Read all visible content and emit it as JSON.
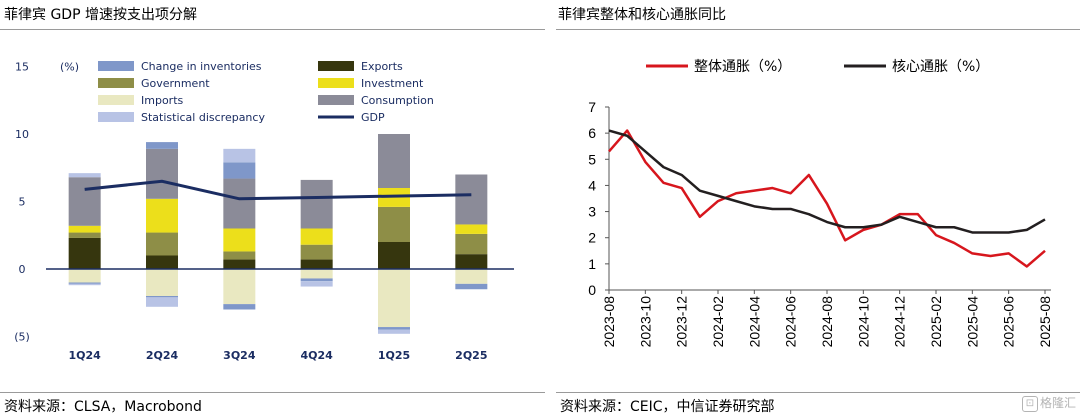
{
  "left": {
    "title": "菲律宾 GDP 增速按支出项分解",
    "source": "资料来源：CLSA，Macrobond",
    "unit_label": "(%)"
  },
  "right": {
    "title": "菲律宾整体和核心通胀同比",
    "source": "资料来源：CEIC，中信证券研究部"
  },
  "watermark": {
    "text": "格隆汇",
    "icon": "stock-chart-logo"
  },
  "chart_data": [
    {
      "type": "bar",
      "stacked": true,
      "categories": [
        "1Q24",
        "2Q24",
        "3Q24",
        "4Q24",
        "1Q25",
        "2Q25"
      ],
      "y_ticks": [
        "15",
        "10",
        "5",
        "0",
        "(5)"
      ],
      "ylim": [
        -5.5,
        15
      ],
      "unit": "(%)",
      "colors": {
        "Change in inventories": "#7f97c9",
        "Exports": "#36360e",
        "Government": "#8e8e47",
        "Investment": "#ecdf1b",
        "Imports": "#e9e8c1",
        "Consumption": "#8b8b98",
        "Statistical discrepancy": "#b8c3e5",
        "GDP": "#1b2d62"
      },
      "legend": [
        "Change in inventories",
        "Exports",
        "Government",
        "Investment",
        "Imports",
        "Consumption",
        "Statistical discrepancy",
        "GDP"
      ],
      "legend_position": "top",
      "series": [
        {
          "name": "Exports",
          "values": [
            2.3,
            1.0,
            0.7,
            0.7,
            2.0,
            1.1
          ]
        },
        {
          "name": "Government",
          "values": [
            0.4,
            1.7,
            0.6,
            1.1,
            2.6,
            1.5
          ]
        },
        {
          "name": "Investment",
          "values": [
            0.5,
            2.5,
            1.7,
            1.2,
            1.4,
            0.7
          ]
        },
        {
          "name": "Consumption",
          "values": [
            3.6,
            3.7,
            3.7,
            3.6,
            4.0,
            3.7
          ]
        },
        {
          "name": "Change in inventories",
          "values": [
            0.0,
            0.5,
            1.2,
            0.0,
            0.0,
            0.0
          ]
        },
        {
          "name": "Statistical discrepancy",
          "values": [
            0.3,
            0.0,
            1.0,
            0.0,
            0.0,
            0.0
          ]
        },
        {
          "name": "Imports",
          "values": [
            -1.0,
            -2.0,
            -2.6,
            -0.7,
            -4.3,
            -1.1
          ]
        },
        {
          "name": "Change in inventories",
          "values": [
            -0.1,
            -0.1,
            -0.4,
            -0.2,
            -0.2,
            -0.4
          ]
        },
        {
          "name": "Statistical discrepancy",
          "values": [
            -0.1,
            -0.7,
            0.0,
            -0.4,
            -0.3,
            0.0
          ]
        }
      ],
      "line": {
        "name": "GDP",
        "values": [
          5.9,
          6.5,
          5.2,
          5.3,
          5.4,
          5.5
        ]
      }
    },
    {
      "type": "line",
      "x": [
        "2023-08",
        "2023-09",
        "2023-10",
        "2023-11",
        "2023-12",
        "2024-01",
        "2024-02",
        "2024-03",
        "2024-04",
        "2024-05",
        "2024-06",
        "2024-07",
        "2024-08",
        "2024-09",
        "2024-10",
        "2024-11",
        "2024-12",
        "2025-01",
        "2025-02",
        "2025-03",
        "2025-04",
        "2025-05",
        "2025-06",
        "2025-07",
        "2025-08"
      ],
      "x_tick_labels": [
        "2023-08",
        "2023-10",
        "2023-12",
        "2024-02",
        "2024-04",
        "2024-06",
        "2024-08",
        "2024-10",
        "2024-12",
        "2025-02",
        "2025-04",
        "2025-06",
        "2025-08"
      ],
      "y_ticks": [
        "7",
        "6",
        "5",
        "4",
        "3",
        "2",
        "1",
        "0"
      ],
      "ylim": [
        0,
        7
      ],
      "legend_position": "top",
      "series": [
        {
          "name": "整体通胀（%）",
          "color": "#d7161d",
          "values": [
            5.3,
            6.1,
            4.9,
            4.1,
            3.9,
            2.8,
            3.4,
            3.7,
            3.8,
            3.9,
            3.7,
            4.4,
            3.3,
            1.9,
            2.3,
            2.5,
            2.9,
            2.9,
            2.1,
            1.8,
            1.4,
            1.3,
            1.4,
            0.9,
            1.5
          ]
        },
        {
          "name": "核心通胀（%）",
          "color": "#231f20",
          "values": [
            6.1,
            5.9,
            5.3,
            4.7,
            4.4,
            3.8,
            3.6,
            3.4,
            3.2,
            3.1,
            3.1,
            2.9,
            2.6,
            2.4,
            2.4,
            2.5,
            2.8,
            2.6,
            2.4,
            2.4,
            2.2,
            2.2,
            2.2,
            2.3,
            2.7
          ]
        }
      ]
    }
  ]
}
